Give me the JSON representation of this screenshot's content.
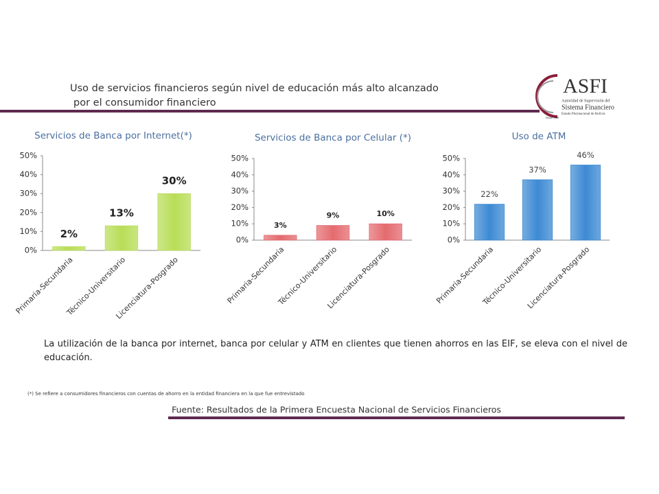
{
  "header": {
    "title_line1": "Uso de servicios financieros según nivel de educación más alto alcanzado",
    "title_line2": "por el consumidor financiero"
  },
  "logo": {
    "name": "ASFI",
    "line1": "Autoridad de Supervisión del",
    "line2": "Sistema Financiero",
    "line3": "Estado Plurinacional de Bolivia",
    "line4": "Desde 1928"
  },
  "chart_data": [
    {
      "type": "bar",
      "title": "Servicios de Banca por Internet(*)",
      "categories": [
        "Primaria-Secundaria",
        "Técnico-Universitario",
        "Licenciatura-Posgrado"
      ],
      "values": [
        2,
        13,
        30
      ],
      "value_labels": [
        "2%",
        "13%",
        "30%"
      ],
      "color": "#b8dd57",
      "ylim": [
        0,
        50
      ],
      "yticks": [
        {
          "value": 0,
          "label": "0%"
        },
        {
          "value": 10,
          "label": "10%"
        },
        {
          "value": 20,
          "label": "20%"
        },
        {
          "value": 30,
          "label": "30%"
        },
        {
          "value": 40,
          "label": "40%"
        },
        {
          "value": 50,
          "label": "50%"
        }
      ]
    },
    {
      "type": "bar",
      "title": "Servicios de Banca por Celular (*)",
      "categories": [
        "Primaria-Secundaria",
        "Técnico-Universitario",
        "Licenciatura-Posgrado"
      ],
      "values": [
        3,
        9,
        10
      ],
      "value_labels": [
        "3%",
        "9%",
        "10%"
      ],
      "color": "#e46b6f",
      "ylim": [
        0,
        50
      ],
      "yticks": [
        {
          "value": 0,
          "label": "0%"
        },
        {
          "value": 10,
          "label": "10%"
        },
        {
          "value": 20,
          "label": "20%"
        },
        {
          "value": 30,
          "label": "30%"
        },
        {
          "value": 40,
          "label": "40%"
        },
        {
          "value": 50,
          "label": "50%"
        }
      ]
    },
    {
      "type": "bar",
      "title": "Uso de ATM",
      "categories": [
        "Primaria-Secundaria",
        "Técnico-Universitario",
        "Licenciatura-Posgrado"
      ],
      "values": [
        22,
        37,
        46
      ],
      "value_labels": [
        "22%",
        "37%",
        "46%"
      ],
      "color": "#3d8ad3",
      "ylim": [
        0,
        50
      ],
      "yticks": [
        {
          "value": 0,
          "label": "0%"
        },
        {
          "value": 10,
          "label": "10%"
        },
        {
          "value": 20,
          "label": "20%"
        },
        {
          "value": 30,
          "label": "30%"
        },
        {
          "value": 40,
          "label": "40%"
        },
        {
          "value": 50,
          "label": "50%"
        }
      ]
    }
  ],
  "paragraph": "La utilización de la banca por internet, banca por celular y ATM en clientes que tienen ahorros en las EIF, se eleva con el nivel de educación.",
  "footnote": "(*) Se refiere a consumidores financieros con cuentas de ahorro en la entidad financiera en la que fue entrevistado",
  "source": "Fuente: Resultados de la Primera Encuesta Nacional de Servicios Financieros"
}
